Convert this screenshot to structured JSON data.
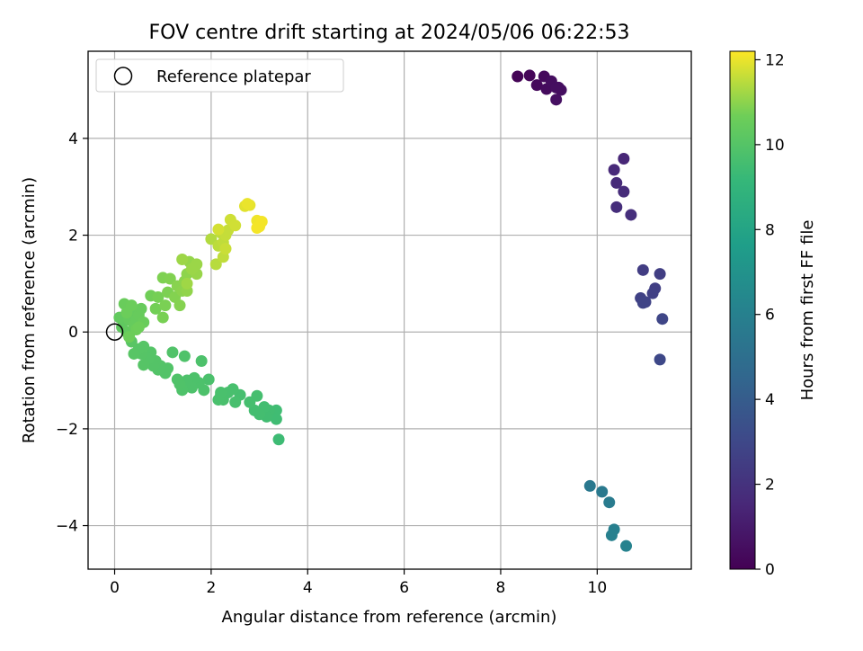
{
  "chart_data": {
    "type": "scatter",
    "title": "FOV centre drift starting at 2024/05/06 06:22:53",
    "xlabel": "Angular distance from reference (arcmin)",
    "ylabel": "Rotation from reference (arcmin)",
    "xlim": [
      -0.55,
      11.95
    ],
    "ylim": [
      -4.9,
      5.8
    ],
    "xticks": [
      0,
      2,
      4,
      6,
      8,
      10
    ],
    "yticks": [
      -4,
      -2,
      0,
      2,
      4
    ],
    "xtick_labels": [
      "0",
      "2",
      "4",
      "6",
      "8",
      "10"
    ],
    "ytick_labels": [
      "−4",
      "−2",
      "0",
      "2",
      "4"
    ],
    "grid": true,
    "legend": {
      "placement": "top-left",
      "entries": [
        {
          "label": "Reference platepar",
          "marker": "open-circle"
        }
      ]
    },
    "reference_point": {
      "x": 0,
      "y": 0
    },
    "colorbar": {
      "label": "Hours from first FF file",
      "colormap": "viridis",
      "range": [
        0,
        12.2
      ],
      "ticks": [
        0,
        2,
        4,
        6,
        8,
        10,
        12
      ],
      "tick_labels": [
        "0",
        "2",
        "4",
        "6",
        "8",
        "10",
        "12"
      ]
    },
    "points": [
      [
        8.35,
        5.28,
        0.1
      ],
      [
        8.6,
        5.3,
        0.2
      ],
      [
        8.75,
        5.1,
        0.3
      ],
      [
        8.9,
        5.28,
        0.35
      ],
      [
        8.95,
        5.02,
        0.4
      ],
      [
        9.05,
        5.18,
        0.45
      ],
      [
        9.15,
        5.05,
        0.5
      ],
      [
        9.25,
        5.0,
        0.55
      ],
      [
        9.15,
        4.8,
        0.6
      ],
      [
        9.2,
        5.05,
        0.5
      ],
      [
        10.55,
        3.58,
        1.5
      ],
      [
        10.35,
        3.35,
        1.6
      ],
      [
        10.4,
        3.08,
        1.65
      ],
      [
        10.55,
        2.9,
        1.7
      ],
      [
        10.4,
        2.58,
        1.8
      ],
      [
        10.7,
        2.42,
        1.85
      ],
      [
        10.95,
        1.28,
        2.5
      ],
      [
        11.3,
        1.2,
        2.55
      ],
      [
        11.2,
        0.9,
        2.6
      ],
      [
        11.15,
        0.8,
        2.65
      ],
      [
        10.9,
        0.7,
        2.7
      ],
      [
        11.0,
        0.62,
        2.75
      ],
      [
        10.95,
        0.6,
        2.8
      ],
      [
        11.35,
        0.27,
        2.9
      ],
      [
        11.3,
        -0.57,
        3.0
      ],
      [
        9.85,
        -3.18,
        5.5
      ],
      [
        10.1,
        -3.3,
        5.6
      ],
      [
        10.25,
        -3.52,
        5.7
      ],
      [
        10.35,
        -4.08,
        5.9
      ],
      [
        10.3,
        -4.2,
        6.0
      ],
      [
        10.6,
        -4.42,
        6.1
      ],
      [
        3.4,
        -2.22,
        9.4
      ],
      [
        3.35,
        -1.62,
        9.45
      ],
      [
        3.35,
        -1.8,
        9.45
      ],
      [
        3.2,
        -1.62,
        9.5
      ],
      [
        3.15,
        -1.75,
        9.5
      ],
      [
        3.1,
        -1.55,
        9.52
      ],
      [
        3.0,
        -1.7,
        9.55
      ],
      [
        2.9,
        -1.62,
        9.55
      ],
      [
        2.95,
        -1.32,
        9.6
      ],
      [
        2.8,
        -1.45,
        9.6
      ],
      [
        2.6,
        -1.3,
        9.62
      ],
      [
        2.5,
        -1.45,
        9.65
      ],
      [
        2.45,
        -1.18,
        9.65
      ],
      [
        2.35,
        -1.25,
        9.68
      ],
      [
        2.25,
        -1.4,
        9.7
      ],
      [
        2.2,
        -1.3,
        9.7
      ],
      [
        2.15,
        -1.4,
        9.72
      ],
      [
        2.2,
        -1.25,
        9.72
      ],
      [
        1.95,
        -0.98,
        9.75
      ],
      [
        1.8,
        -0.6,
        9.78
      ],
      [
        1.85,
        -1.2,
        9.78
      ],
      [
        1.75,
        -1.05,
        9.8
      ],
      [
        1.65,
        -0.95,
        9.8
      ],
      [
        1.6,
        -1.15,
        9.82
      ],
      [
        1.5,
        -1.0,
        9.82
      ],
      [
        1.45,
        -0.5,
        9.85
      ],
      [
        1.4,
        -1.2,
        9.85
      ],
      [
        1.35,
        -1.08,
        9.88
      ],
      [
        1.3,
        -0.98,
        9.88
      ],
      [
        1.2,
        -0.42,
        9.9
      ],
      [
        1.05,
        -0.85,
        9.92
      ],
      [
        1.1,
        -0.75,
        9.92
      ],
      [
        0.95,
        -0.7,
        9.95
      ],
      [
        0.9,
        -0.78,
        9.95
      ],
      [
        0.85,
        -0.6,
        9.97
      ],
      [
        0.8,
        -0.7,
        9.97
      ],
      [
        0.75,
        -0.42,
        10.0
      ],
      [
        0.7,
        -0.55,
        10.0
      ],
      [
        0.6,
        -0.68,
        10.02
      ],
      [
        0.55,
        -0.45,
        10.02
      ],
      [
        0.6,
        -0.3,
        10.05
      ],
      [
        0.5,
        -0.35,
        10.05
      ],
      [
        0.4,
        -0.45,
        10.08
      ],
      [
        0.35,
        -0.2,
        10.1
      ],
      [
        0.3,
        -0.05,
        10.1
      ],
      [
        0.2,
        0.3,
        10.3
      ],
      [
        0.15,
        0.1,
        10.3
      ],
      [
        0.25,
        0.0,
        10.35
      ],
      [
        0.1,
        0.3,
        10.35
      ],
      [
        0.3,
        0.25,
        10.4
      ],
      [
        0.35,
        0.42,
        10.4
      ],
      [
        0.4,
        0.15,
        10.45
      ],
      [
        0.45,
        0.25,
        10.45
      ],
      [
        0.5,
        0.35,
        10.5
      ],
      [
        0.55,
        0.48,
        10.5
      ],
      [
        0.6,
        0.2,
        10.55
      ],
      [
        0.2,
        0.58,
        10.55
      ],
      [
        0.35,
        0.55,
        10.6
      ],
      [
        0.25,
        0.4,
        10.6
      ],
      [
        0.45,
        0.05,
        10.62
      ],
      [
        0.3,
        -0.1,
        10.62
      ],
      [
        0.5,
        0.1,
        10.65
      ],
      [
        0.75,
        0.75,
        10.7
      ],
      [
        0.85,
        0.48,
        10.72
      ],
      [
        0.9,
        0.72,
        10.75
      ],
      [
        1.0,
        0.3,
        10.78
      ],
      [
        1.05,
        0.55,
        10.8
      ],
      [
        1.1,
        0.82,
        10.82
      ],
      [
        1.0,
        1.12,
        10.85
      ],
      [
        1.15,
        1.1,
        10.88
      ],
      [
        1.25,
        0.72,
        10.9
      ],
      [
        1.35,
        0.55,
        10.92
      ],
      [
        1.3,
        0.95,
        10.95
      ],
      [
        1.4,
        0.85,
        10.98
      ],
      [
        1.45,
        1.05,
        11.0
      ],
      [
        1.5,
        1.2,
        11.02
      ],
      [
        1.5,
        0.85,
        11.05
      ],
      [
        1.55,
        1.45,
        11.08
      ],
      [
        1.65,
        1.35,
        11.1
      ],
      [
        1.7,
        1.2,
        11.12
      ],
      [
        1.6,
        1.3,
        11.15
      ],
      [
        1.7,
        1.4,
        11.15
      ],
      [
        1.4,
        1.5,
        11.18
      ],
      [
        1.5,
        1.0,
        11.2
      ],
      [
        2.0,
        1.92,
        11.4
      ],
      [
        2.1,
        1.4,
        11.45
      ],
      [
        2.15,
        1.78,
        11.5
      ],
      [
        2.2,
        2.05,
        11.5
      ],
      [
        2.25,
        1.55,
        11.55
      ],
      [
        2.25,
        1.85,
        11.55
      ],
      [
        2.3,
        2.0,
        11.6
      ],
      [
        2.35,
        2.1,
        11.6
      ],
      [
        2.3,
        1.72,
        11.65
      ],
      [
        2.4,
        2.32,
        11.7
      ],
      [
        2.5,
        2.2,
        11.72
      ],
      [
        2.15,
        2.12,
        11.75
      ],
      [
        2.7,
        2.6,
        11.9
      ],
      [
        2.8,
        2.62,
        11.95
      ],
      [
        2.75,
        2.65,
        12.0
      ],
      [
        2.95,
        2.3,
        12.05
      ],
      [
        3.0,
        2.18,
        12.08
      ],
      [
        3.05,
        2.28,
        12.1
      ],
      [
        2.95,
        2.15,
        12.1
      ]
    ]
  }
}
